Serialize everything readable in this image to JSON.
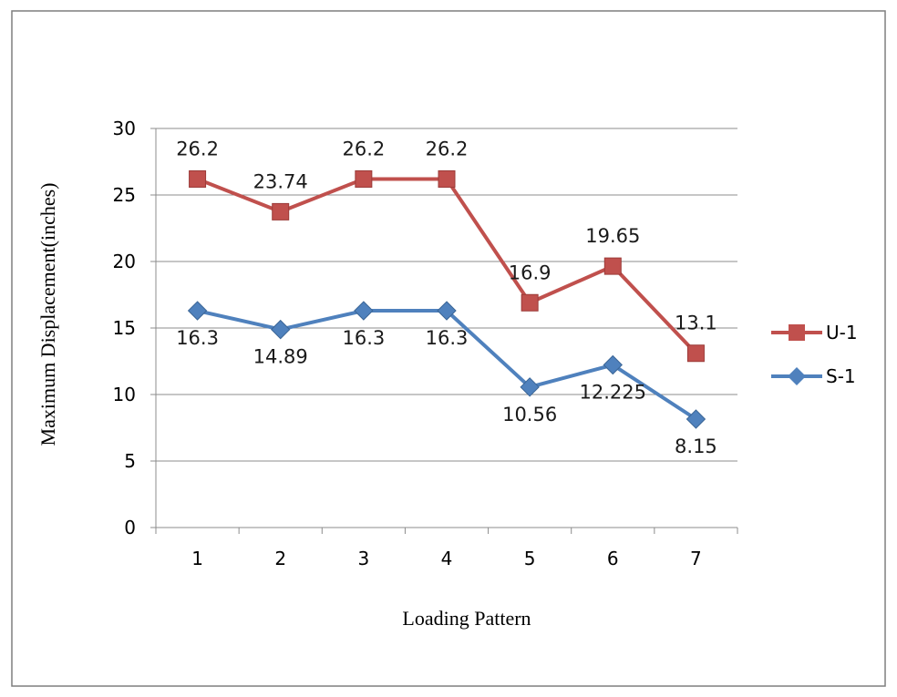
{
  "chart_data": {
    "type": "line",
    "categories": [
      "1",
      "2",
      "3",
      "4",
      "5",
      "6",
      "7"
    ],
    "xlabel": "Loading Pattern",
    "ylabel": "Maximum Displacement(inches)",
    "ylim": [
      0,
      30
    ],
    "yticks": [
      0,
      5,
      10,
      15,
      20,
      25,
      30
    ],
    "grid": true,
    "legend_position": "right",
    "series": [
      {
        "name": "U-1",
        "color": "#c0504d",
        "marker": "square",
        "values": [
          26.2,
          23.74,
          26.2,
          26.2,
          16.9,
          19.65,
          13.1
        ],
        "labels": [
          "26.2",
          "23.74",
          "26.2",
          "26.2",
          "16.9",
          "19.65",
          "13.1"
        ]
      },
      {
        "name": "S-1",
        "color": "#4f81bd",
        "marker": "diamond",
        "values": [
          16.3,
          14.89,
          16.3,
          16.3,
          10.56,
          12.225,
          8.15
        ],
        "labels": [
          "16.3",
          "14.89",
          "16.3",
          "16.3",
          "10.56",
          "12.225",
          "8.15"
        ]
      }
    ]
  }
}
